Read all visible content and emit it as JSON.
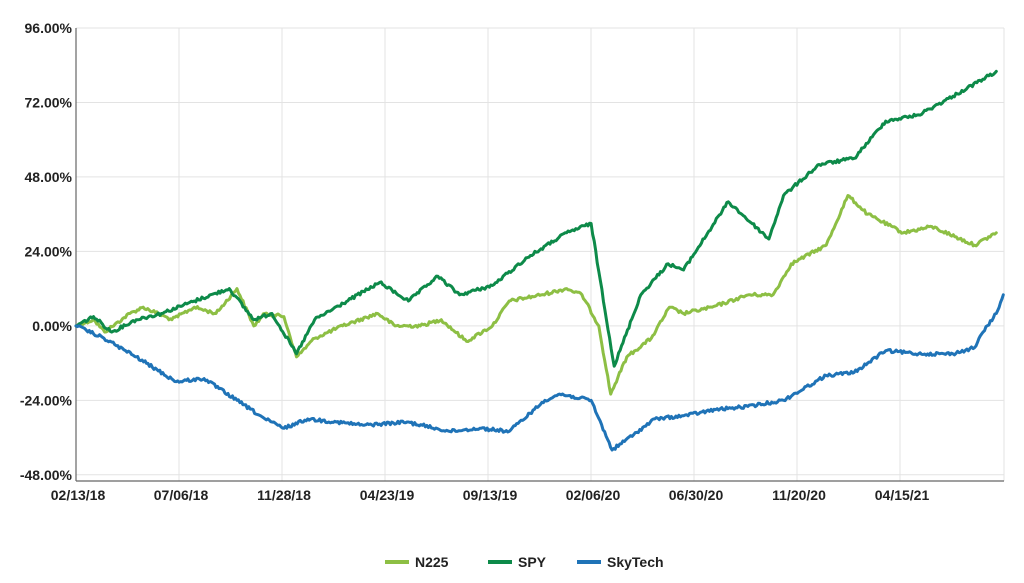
{
  "chart_data": {
    "type": "line",
    "title": "",
    "xlabel": "",
    "ylabel": "",
    "x_tick_labels": [
      "02/13/18",
      "07/06/18",
      "11/28/18",
      "04/23/19",
      "09/13/19",
      "02/06/20",
      "06/30/20",
      "11/20/20",
      "04/15/21"
    ],
    "y_tick_labels": [
      "96.00%",
      "72.00%",
      "48.00%",
      "24.00%",
      "0.00%",
      "-24.00%",
      "-48.00%"
    ],
    "y_ticks": [
      96,
      72,
      48,
      24,
      0,
      -24,
      -48
    ],
    "ylim": [
      -50,
      96
    ],
    "xlim": [
      "2018-02-13",
      "2021-10-01"
    ],
    "grid": true,
    "legend_position": "bottom-center",
    "series": [
      {
        "name": "N225",
        "color": "#8dbf44",
        "points": [
          [
            "2018-02-13",
            0
          ],
          [
            "2018-03-10",
            2
          ],
          [
            "2018-03-26",
            -2
          ],
          [
            "2018-05-01",
            4
          ],
          [
            "2018-05-20",
            6
          ],
          [
            "2018-06-30",
            2
          ],
          [
            "2018-08-01",
            6
          ],
          [
            "2018-09-01",
            4
          ],
          [
            "2018-10-01",
            12
          ],
          [
            "2018-10-25",
            0
          ],
          [
            "2018-11-10",
            4
          ],
          [
            "2018-12-07",
            3
          ],
          [
            "2018-12-25",
            -10
          ],
          [
            "2019-01-20",
            -4
          ],
          [
            "2019-03-01",
            0
          ],
          [
            "2019-04-20",
            4
          ],
          [
            "2019-05-15",
            0
          ],
          [
            "2019-06-20",
            0
          ],
          [
            "2019-07-20",
            2
          ],
          [
            "2019-08-25",
            -5
          ],
          [
            "2019-10-01",
            0
          ],
          [
            "2019-10-25",
            8
          ],
          [
            "2019-12-10",
            10
          ],
          [
            "2020-01-15",
            12
          ],
          [
            "2020-02-06",
            10
          ],
          [
            "2020-03-01",
            0
          ],
          [
            "2020-03-18",
            -22
          ],
          [
            "2020-04-10",
            -10
          ],
          [
            "2020-05-15",
            -4
          ],
          [
            "2020-06-10",
            6
          ],
          [
            "2020-06-30",
            4
          ],
          [
            "2020-08-10",
            6
          ],
          [
            "2020-10-01",
            10
          ],
          [
            "2020-11-05",
            10
          ],
          [
            "2020-12-01",
            20
          ],
          [
            "2021-01-20",
            26
          ],
          [
            "2021-02-20",
            42
          ],
          [
            "2021-03-20",
            36
          ],
          [
            "2021-05-10",
            30
          ],
          [
            "2021-06-20",
            32
          ],
          [
            "2021-08-20",
            26
          ],
          [
            "2021-09-20",
            30
          ]
        ]
      },
      {
        "name": "SPY",
        "color": "#0d8a49",
        "points": [
          [
            "2018-02-13",
            0
          ],
          [
            "2018-03-10",
            3
          ],
          [
            "2018-04-05",
            -2
          ],
          [
            "2018-05-10",
            2
          ],
          [
            "2018-06-15",
            4
          ],
          [
            "2018-08-01",
            8
          ],
          [
            "2018-09-20",
            12
          ],
          [
            "2018-10-25",
            2
          ],
          [
            "2018-11-20",
            4
          ],
          [
            "2018-12-25",
            -9
          ],
          [
            "2019-01-20",
            2
          ],
          [
            "2019-04-23",
            14
          ],
          [
            "2019-06-03",
            8
          ],
          [
            "2019-07-15",
            16
          ],
          [
            "2019-08-15",
            10
          ],
          [
            "2019-10-01",
            13
          ],
          [
            "2019-11-20",
            22
          ],
          [
            "2020-01-15",
            30
          ],
          [
            "2020-02-19",
            33
          ],
          [
            "2020-03-23",
            -13
          ],
          [
            "2020-04-30",
            10
          ],
          [
            "2020-06-08",
            20
          ],
          [
            "2020-06-30",
            18
          ],
          [
            "2020-09-02",
            40
          ],
          [
            "2020-10-30",
            28
          ],
          [
            "2020-11-20",
            42
          ],
          [
            "2021-01-10",
            52
          ],
          [
            "2021-03-01",
            54
          ],
          [
            "2021-04-15",
            66
          ],
          [
            "2021-06-01",
            68
          ],
          [
            "2021-07-20",
            74
          ],
          [
            "2021-09-20",
            82
          ]
        ]
      },
      {
        "name": "SkyTech",
        "color": "#1f73b7",
        "points": [
          [
            "2018-02-13",
            0
          ],
          [
            "2018-03-25",
            -4
          ],
          [
            "2018-05-10",
            -10
          ],
          [
            "2018-07-06",
            -18
          ],
          [
            "2018-08-15",
            -17
          ],
          [
            "2018-10-01",
            -24
          ],
          [
            "2018-11-10",
            -30
          ],
          [
            "2018-12-07",
            -33
          ],
          [
            "2019-01-10",
            -30
          ],
          [
            "2019-02-20",
            -31
          ],
          [
            "2019-04-01",
            -32
          ],
          [
            "2019-06-01",
            -31
          ],
          [
            "2019-08-01",
            -34
          ],
          [
            "2019-09-13",
            -33
          ],
          [
            "2019-10-25",
            -34
          ],
          [
            "2019-12-15",
            -24
          ],
          [
            "2020-01-05",
            -22
          ],
          [
            "2020-02-19",
            -24
          ],
          [
            "2020-03-20",
            -40
          ],
          [
            "2020-04-20",
            -35
          ],
          [
            "2020-05-20",
            -30
          ],
          [
            "2020-06-30",
            -29
          ],
          [
            "2020-08-15",
            -27
          ],
          [
            "2020-09-30",
            -26
          ],
          [
            "2020-11-20",
            -24
          ],
          [
            "2021-01-20",
            -16
          ],
          [
            "2021-03-01",
            -15
          ],
          [
            "2021-04-15",
            -8
          ],
          [
            "2021-06-01",
            -9
          ],
          [
            "2021-07-20",
            -9
          ],
          [
            "2021-08-20",
            -7
          ],
          [
            "2021-09-01",
            -2
          ],
          [
            "2021-09-20",
            4
          ],
          [
            "2021-09-30",
            10
          ]
        ]
      }
    ]
  }
}
